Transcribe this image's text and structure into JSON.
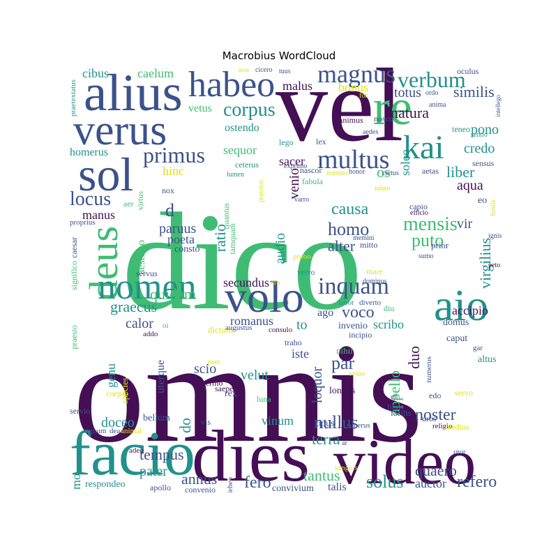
{
  "title": "Macrobius WordCloud",
  "colors": {
    "purple": "#440f54",
    "navy": "#3b528b",
    "teal": "#21918c",
    "green": "#3fbc73",
    "yellow": "#dde318"
  },
  "words": [
    {
      "text": "dico",
      "color": "green"
    },
    {
      "text": "omnis",
      "color": "purple"
    },
    {
      "text": "vel",
      "color": "purple"
    },
    {
      "text": "video",
      "color": "purple"
    },
    {
      "text": "dies",
      "color": "purple"
    },
    {
      "text": "facio",
      "color": "teal"
    },
    {
      "text": "alius",
      "color": "navy"
    },
    {
      "text": "verus",
      "color": "navy"
    },
    {
      "text": "re",
      "color": "green"
    },
    {
      "text": "sol",
      "color": "navy"
    },
    {
      "text": "deus",
      "color": "green"
    },
    {
      "text": "nomen",
      "color": "teal"
    },
    {
      "text": "volo",
      "color": "navy"
    },
    {
      "text": "aio",
      "color": "teal"
    },
    {
      "text": "habeo",
      "color": "navy"
    },
    {
      "text": "kai",
      "color": "teal"
    },
    {
      "text": "multus",
      "color": "navy"
    },
    {
      "text": "magnus",
      "color": "navy"
    },
    {
      "text": "inquam",
      "color": "navy"
    },
    {
      "text": "verbum",
      "color": "teal"
    },
    {
      "text": "corpus",
      "color": "teal"
    },
    {
      "text": "primus",
      "color": "navy"
    },
    {
      "text": "locus",
      "color": "navy"
    },
    {
      "text": "mensis",
      "color": "green"
    },
    {
      "text": "homo",
      "color": "navy"
    },
    {
      "text": "causa",
      "color": "teal"
    },
    {
      "text": "alter",
      "color": "navy"
    },
    {
      "text": "puto",
      "color": "green"
    },
    {
      "text": "voco",
      "color": "navy"
    },
    {
      "text": "par",
      "color": "navy"
    },
    {
      "text": "nullus",
      "color": "navy"
    },
    {
      "text": "noster",
      "color": "navy"
    },
    {
      "text": "quaero",
      "color": "navy"
    },
    {
      "text": "refero",
      "color": "navy"
    },
    {
      "text": "fero",
      "color": "navy"
    },
    {
      "text": "tantus",
      "color": "green"
    },
    {
      "text": "solus",
      "color": "teal"
    },
    {
      "text": "annus",
      "color": "navy"
    },
    {
      "text": "tempus",
      "color": "navy"
    },
    {
      "text": "pater",
      "color": "teal"
    },
    {
      "text": "doceo",
      "color": "teal"
    },
    {
      "text": "quidam",
      "color": "green"
    },
    {
      "text": "graecus",
      "color": "teal"
    },
    {
      "text": "calor",
      "color": "navy"
    },
    {
      "text": "secundus",
      "color": "purple"
    },
    {
      "text": "romanus",
      "color": "navy"
    },
    {
      "text": "to",
      "color": "teal"
    },
    {
      "text": "scribo",
      "color": "teal"
    },
    {
      "text": "accipio",
      "color": "purple"
    },
    {
      "text": "virgilius",
      "color": "teal"
    },
    {
      "text": "natura",
      "color": "purple"
    },
    {
      "text": "similis",
      "color": "navy"
    },
    {
      "text": "pono",
      "color": "teal"
    },
    {
      "text": "credo",
      "color": "teal"
    },
    {
      "text": "liber",
      "color": "teal"
    },
    {
      "text": "aqua",
      "color": "purple"
    },
    {
      "text": "vir",
      "color": "navy"
    },
    {
      "text": "totus",
      "color": "navy"
    },
    {
      "text": "bonus",
      "color": "yellow"
    },
    {
      "text": "malus",
      "color": "purple"
    },
    {
      "text": "vetus",
      "color": "green"
    },
    {
      "text": "caelum",
      "color": "green"
    },
    {
      "text": "cibus",
      "color": "teal"
    },
    {
      "text": "homerus",
      "color": "teal"
    },
    {
      "text": "hinc",
      "color": "yellow"
    },
    {
      "text": "manus",
      "color": "purple"
    },
    {
      "text": "paruus",
      "color": "navy"
    },
    {
      "text": "poeta",
      "color": "navy"
    },
    {
      "text": "consto",
      "color": "navy"
    },
    {
      "text": "d",
      "color": "navy"
    },
    {
      "text": "aestimo",
      "color": "green"
    },
    {
      "text": "ratio",
      "color": "teal"
    },
    {
      "text": "audio",
      "color": "teal"
    },
    {
      "text": "venio",
      "color": "purple"
    },
    {
      "text": "os",
      "color": "green"
    },
    {
      "text": "sacer",
      "color": "purple"
    },
    {
      "text": "sequor",
      "color": "green"
    },
    {
      "text": "ostendo",
      "color": "teal"
    },
    {
      "text": "soleo",
      "color": "teal"
    },
    {
      "text": "genu",
      "color": "teal"
    },
    {
      "text": "uterque",
      "color": "navy"
    },
    {
      "text": "scio",
      "color": "navy"
    },
    {
      "text": "velut",
      "color": "teal"
    },
    {
      "text": "iste",
      "color": "navy"
    },
    {
      "text": "loquor",
      "color": "navy"
    },
    {
      "text": "appello",
      "color": "green"
    },
    {
      "text": "duo",
      "color": "purple"
    },
    {
      "text": "vinum",
      "color": "teal"
    },
    {
      "text": "do",
      "color": "teal"
    },
    {
      "text": "terra",
      "color": "teal"
    },
    {
      "text": "auctor",
      "color": "navy"
    },
    {
      "text": "ago",
      "color": "navy"
    },
    {
      "text": "caput",
      "color": "navy"
    },
    {
      "text": "mo",
      "color": "teal"
    },
    {
      "text": "talis",
      "color": "navy"
    },
    {
      "text": "convivium",
      "color": "navy"
    },
    {
      "text": "opus",
      "color": "navy"
    },
    {
      "text": "bellum",
      "color": "navy"
    },
    {
      "text": "vis",
      "color": "navy"
    },
    {
      "text": "respondeo",
      "color": "teal"
    },
    {
      "text": "apollo",
      "color": "navy"
    },
    {
      "text": "convenio",
      "color": "navy"
    },
    {
      "text": "debeo",
      "color": "navy"
    },
    {
      "text": "sermo",
      "color": "purple"
    },
    {
      "text": "saepe",
      "color": "purple"
    },
    {
      "text": "rex",
      "color": "navy"
    },
    {
      "text": "longus",
      "color": "purple"
    },
    {
      "text": "luna",
      "color": "green"
    },
    {
      "text": "vester",
      "color": "yellow"
    },
    {
      "text": "species",
      "color": "yellow"
    },
    {
      "text": "coepio",
      "color": "yellow"
    },
    {
      "text": "puer",
      "color": "yellow"
    },
    {
      "text": "servio",
      "color": "navy"
    },
    {
      "text": "signum",
      "color": "navy"
    },
    {
      "text": "dea",
      "color": "navy"
    },
    {
      "text": "animal",
      "color": "yellow"
    },
    {
      "text": "adeo",
      "color": "purple"
    },
    {
      "text": "praesto",
      "color": "green"
    },
    {
      "text": "addo",
      "color": "purple"
    },
    {
      "text": "oi",
      "color": "green"
    },
    {
      "text": "dictum",
      "color": "yellow"
    },
    {
      "text": "augustus",
      "color": "navy"
    },
    {
      "text": "consulo",
      "color": "purple"
    },
    {
      "text": "invenio",
      "color": "navy"
    },
    {
      "text": "traho",
      "color": "navy"
    },
    {
      "text": "nihil",
      "color": "green"
    },
    {
      "text": "incipio",
      "color": "navy"
    },
    {
      "text": "diverto",
      "color": "navy"
    },
    {
      "text": "labor",
      "color": "teal"
    },
    {
      "text": "diu",
      "color": "green"
    },
    {
      "text": "numerus",
      "color": "navy"
    },
    {
      "text": "domus",
      "color": "navy"
    },
    {
      "text": "gar",
      "color": "navy"
    },
    {
      "text": "altus",
      "color": "teal"
    },
    {
      "text": "edo",
      "color": "navy"
    },
    {
      "text": "servo",
      "color": "yellow"
    },
    {
      "text": "facilis",
      "color": "navy"
    },
    {
      "text": "urbs",
      "color": "navy"
    },
    {
      "text": "religio",
      "color": "purple"
    },
    {
      "text": "medius",
      "color": "yellow"
    },
    {
      "text": "utor",
      "color": "navy"
    },
    {
      "text": "superus",
      "color": "navy"
    },
    {
      "text": "en",
      "color": "navy"
    },
    {
      "text": "filius",
      "color": "navy"
    },
    {
      "text": "sanguis",
      "color": "yellow"
    },
    {
      "text": "ar",
      "color": "navy"
    },
    {
      "text": "mare",
      "color": "yellow"
    },
    {
      "text": "dominus",
      "color": "navy"
    },
    {
      "text": "verro",
      "color": "teal"
    },
    {
      "text": "ara",
      "color": "yellow"
    },
    {
      "text": "probo",
      "color": "yellow"
    },
    {
      "text": "mitto",
      "color": "navy"
    },
    {
      "text": "memini",
      "color": "navy"
    },
    {
      "text": "prior",
      "color": "navy"
    },
    {
      "text": "sumo",
      "color": "navy"
    },
    {
      "text": "capio",
      "color": "navy"
    },
    {
      "text": "efficio",
      "color": "purple"
    },
    {
      "text": "peto",
      "color": "purple"
    },
    {
      "text": "ignis",
      "color": "navy"
    },
    {
      "text": "hostis",
      "color": "yellow"
    },
    {
      "text": "eo",
      "color": "navy"
    },
    {
      "text": "varro",
      "color": "navy"
    },
    {
      "text": "iubeo",
      "color": "yellow"
    },
    {
      "text": "certus",
      "color": "navy"
    },
    {
      "text": "aetas",
      "color": "navy"
    },
    {
      "text": "sensus",
      "color": "navy"
    },
    {
      "text": "sentio",
      "color": "teal"
    },
    {
      "text": "teneo",
      "color": "teal"
    },
    {
      "text": "honor",
      "color": "navy"
    },
    {
      "text": "aedes",
      "color": "navy"
    },
    {
      "text": "nosco",
      "color": "navy"
    },
    {
      "text": "animus",
      "color": "purple"
    },
    {
      "text": "lex",
      "color": "navy"
    },
    {
      "text": "lego",
      "color": "teal"
    },
    {
      "text": "nomino",
      "color": "yellow"
    },
    {
      "text": "fabula",
      "color": "green"
    },
    {
      "text": "nascor",
      "color": "navy"
    },
    {
      "text": "exprimo",
      "color": "navy"
    },
    {
      "text": "ceterus",
      "color": "teal"
    },
    {
      "text": "lumen",
      "color": "teal"
    },
    {
      "text": "populus",
      "color": "yellow"
    },
    {
      "text": "quantus",
      "color": "green"
    },
    {
      "text": "tamquam",
      "color": "green"
    },
    {
      "text": "nox",
      "color": "navy"
    },
    {
      "text": "aer",
      "color": "green"
    },
    {
      "text": "virtus",
      "color": "green"
    },
    {
      "text": "proprius",
      "color": "navy"
    },
    {
      "text": "caesar",
      "color": "navy"
    },
    {
      "text": "significo",
      "color": "green"
    },
    {
      "text": "servus",
      "color": "navy"
    },
    {
      "text": "praetextatus",
      "color": "teal"
    },
    {
      "text": "usus",
      "color": "yellow"
    },
    {
      "text": "cicero",
      "color": "navy"
    },
    {
      "text": "tuus",
      "color": "navy"
    },
    {
      "text": "oculus",
      "color": "navy"
    },
    {
      "text": "ordo",
      "color": "navy"
    },
    {
      "text": "anima",
      "color": "navy"
    },
    {
      "text": "intellego",
      "color": "navy"
    },
    {
      "text": "for",
      "color": "yellow"
    }
  ]
}
